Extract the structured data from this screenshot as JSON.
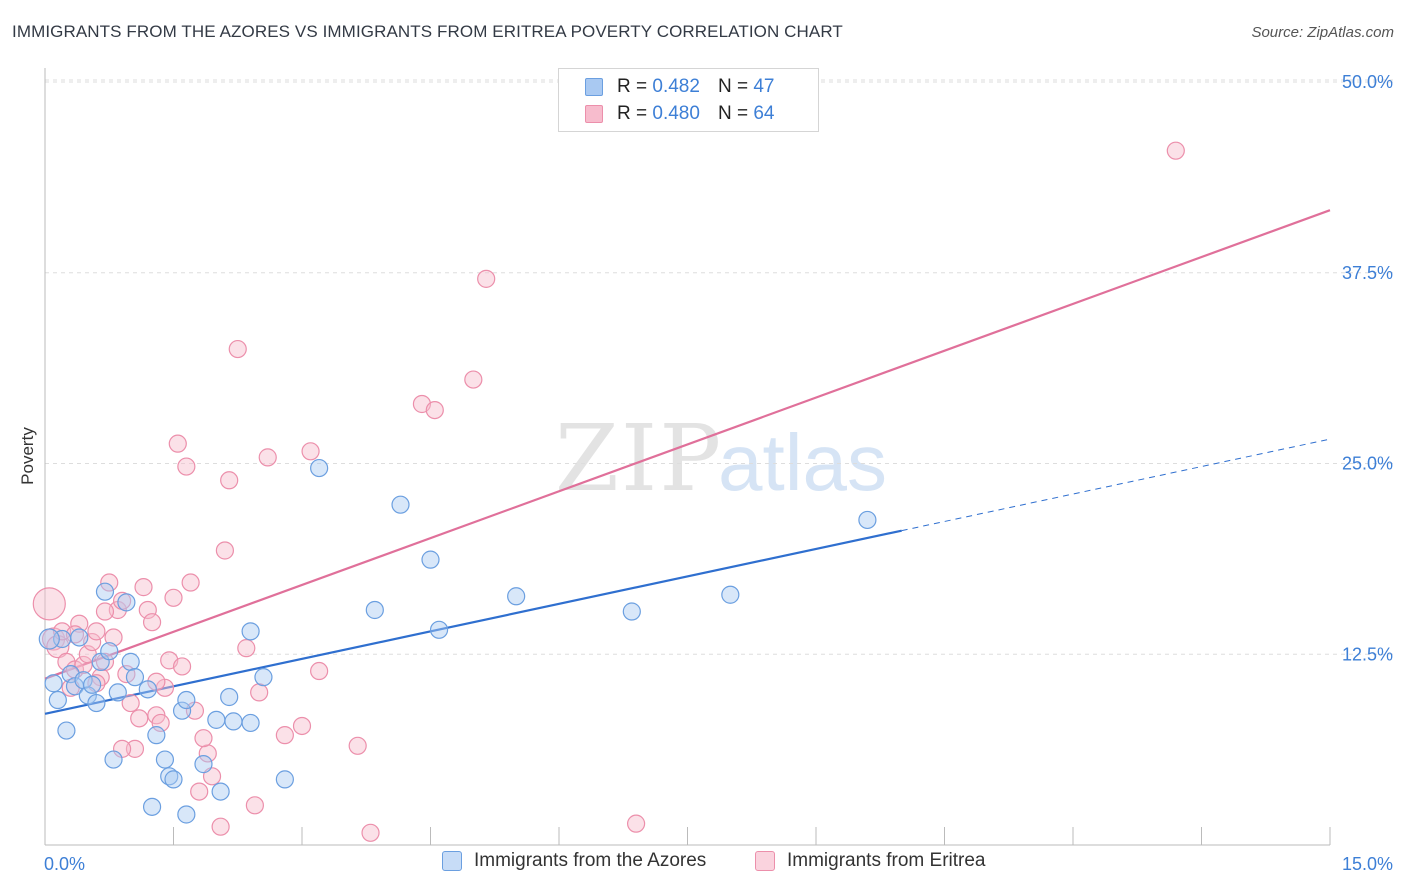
{
  "title": "IMMIGRANTS FROM THE AZORES VS IMMIGRANTS FROM ERITREA POVERTY CORRELATION CHART",
  "source": "Source: ZipAtlas.com",
  "watermark": {
    "zip": "ZIP",
    "atlas": "atlas"
  },
  "legend": {
    "rows": [
      {
        "r_label": "R =",
        "r_value": "0.482",
        "n_label": "N =",
        "n_value": "47"
      },
      {
        "r_label": "R =",
        "r_value": "0.480",
        "n_label": "N =",
        "n_value": "64"
      }
    ]
  },
  "bottom_legend": {
    "azores": "Immigrants from the Azores",
    "eritrea": "Immigrants from Eritrea"
  },
  "colors": {
    "azores_fill": "#a9c9f2",
    "azores_stroke": "#6b9fe0",
    "azores_line": "#2f6fcf",
    "eritrea_fill": "#f7bccd",
    "eritrea_stroke": "#ec8fab",
    "eritrea_line": "#e0709a",
    "tick_text": "#3d7fd6",
    "grid": "#dddddd"
  },
  "chart_data": {
    "type": "scatter",
    "title": "IMMIGRANTS FROM THE AZORES VS IMMIGRANTS FROM ERITREA POVERTY CORRELATION CHART",
    "xlabel": "",
    "ylabel": "Poverty",
    "xlim": [
      0,
      15
    ],
    "ylim": [
      0,
      50
    ],
    "x_tick_labels": [
      "0.0%",
      "15.0%"
    ],
    "y_ticks": [
      12.5,
      25.0,
      37.5,
      50.0
    ],
    "y_tick_labels": [
      "12.5%",
      "25.0%",
      "37.5%",
      "50.0%"
    ],
    "grid": true,
    "series": [
      {
        "name": "Immigrants from the Azores",
        "r": 0.482,
        "n": 47,
        "trend": {
          "x0": 0,
          "y0": 8.6,
          "x1": 10.0,
          "y1": 20.6,
          "dash_x1": 15.0,
          "dash_y1": 26.6
        },
        "points": [
          [
            0.1,
            10.6
          ],
          [
            0.15,
            9.5
          ],
          [
            0.2,
            13.5
          ],
          [
            0.25,
            7.5
          ],
          [
            0.3,
            11.2
          ],
          [
            0.35,
            10.4
          ],
          [
            0.4,
            13.6
          ],
          [
            0.45,
            10.8
          ],
          [
            0.5,
            9.8
          ],
          [
            0.55,
            10.5
          ],
          [
            0.6,
            9.3
          ],
          [
            0.65,
            12.0
          ],
          [
            0.7,
            16.6
          ],
          [
            0.75,
            12.7
          ],
          [
            0.8,
            5.6
          ],
          [
            0.85,
            10.0
          ],
          [
            0.95,
            15.9
          ],
          [
            1.0,
            12.0
          ],
          [
            1.05,
            11.0
          ],
          [
            1.2,
            10.2
          ],
          [
            1.3,
            7.2
          ],
          [
            1.4,
            5.6
          ],
          [
            1.45,
            4.5
          ],
          [
            1.5,
            4.3
          ],
          [
            1.6,
            8.8
          ],
          [
            1.65,
            9.5
          ],
          [
            1.25,
            2.5
          ],
          [
            1.65,
            2.0
          ],
          [
            1.85,
            5.3
          ],
          [
            2.0,
            8.2
          ],
          [
            2.05,
            3.5
          ],
          [
            2.15,
            9.7
          ],
          [
            2.2,
            8.1
          ],
          [
            2.4,
            14.0
          ],
          [
            2.4,
            8.0
          ],
          [
            2.55,
            11.0
          ],
          [
            2.8,
            4.3
          ],
          [
            3.2,
            24.7
          ],
          [
            3.85,
            15.4
          ],
          [
            4.15,
            22.3
          ],
          [
            4.5,
            18.7
          ],
          [
            4.6,
            14.1
          ],
          [
            5.5,
            16.3
          ],
          [
            6.85,
            15.3
          ],
          [
            8.0,
            16.4
          ],
          [
            9.6,
            21.3
          ],
          [
            0.05,
            13.5
          ]
        ]
      },
      {
        "name": "Immigrants from Eritrea",
        "r": 0.48,
        "n": 64,
        "trend": {
          "x0": 0,
          "y0": 10.9,
          "x1": 15.0,
          "y1": 41.6
        },
        "points": [
          [
            0.05,
            15.8
          ],
          [
            0.1,
            13.5
          ],
          [
            0.15,
            13.0
          ],
          [
            0.2,
            14.0
          ],
          [
            0.25,
            12.0
          ],
          [
            0.3,
            10.3
          ],
          [
            0.35,
            11.5
          ],
          [
            0.4,
            14.5
          ],
          [
            0.45,
            11.8
          ],
          [
            0.5,
            12.5
          ],
          [
            0.55,
            13.3
          ],
          [
            0.6,
            14.0
          ],
          [
            0.65,
            11.0
          ],
          [
            0.7,
            12.0
          ],
          [
            0.75,
            17.2
          ],
          [
            0.8,
            13.6
          ],
          [
            0.85,
            15.4
          ],
          [
            0.9,
            16.0
          ],
          [
            0.95,
            11.2
          ],
          [
            1.0,
            9.3
          ],
          [
            1.05,
            6.3
          ],
          [
            1.1,
            8.3
          ],
          [
            1.15,
            16.9
          ],
          [
            1.2,
            15.4
          ],
          [
            1.25,
            14.6
          ],
          [
            1.3,
            8.5
          ],
          [
            1.35,
            8.0
          ],
          [
            1.4,
            10.3
          ],
          [
            1.45,
            12.1
          ],
          [
            1.5,
            16.2
          ],
          [
            1.55,
            26.3
          ],
          [
            1.65,
            24.8
          ],
          [
            1.7,
            17.2
          ],
          [
            1.75,
            8.8
          ],
          [
            1.8,
            3.5
          ],
          [
            1.9,
            6.0
          ],
          [
            1.95,
            4.5
          ],
          [
            2.05,
            1.2
          ],
          [
            2.1,
            19.3
          ],
          [
            2.15,
            23.9
          ],
          [
            2.25,
            32.5
          ],
          [
            2.35,
            12.9
          ],
          [
            2.45,
            2.6
          ],
          [
            2.5,
            10.0
          ],
          [
            2.6,
            25.4
          ],
          [
            2.8,
            7.2
          ],
          [
            3.0,
            7.8
          ],
          [
            3.1,
            25.8
          ],
          [
            3.2,
            11.4
          ],
          [
            3.65,
            6.5
          ],
          [
            3.8,
            0.8
          ],
          [
            4.4,
            28.9
          ],
          [
            4.55,
            28.5
          ],
          [
            5.0,
            30.5
          ],
          [
            5.15,
            37.1
          ],
          [
            6.9,
            1.4
          ],
          [
            13.2,
            45.5
          ],
          [
            0.9,
            6.3
          ],
          [
            1.3,
            10.7
          ],
          [
            0.6,
            10.6
          ],
          [
            1.6,
            11.7
          ],
          [
            1.85,
            7.0
          ],
          [
            0.35,
            13.8
          ],
          [
            0.7,
            15.3
          ]
        ]
      }
    ]
  }
}
